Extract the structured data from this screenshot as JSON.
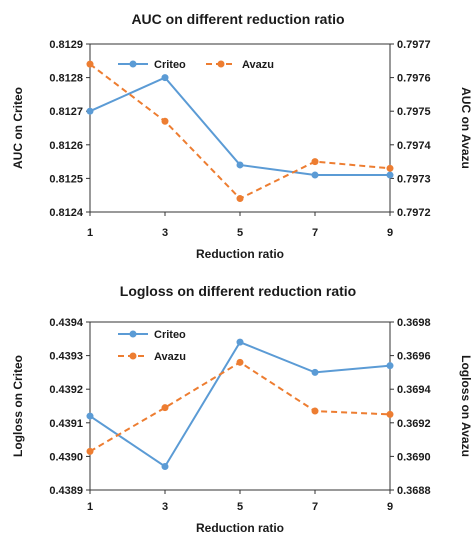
{
  "chart_data": [
    {
      "type": "line",
      "title": "AUC on different reduction ratio",
      "xlabel": "Reduction ratio",
      "ylabel_left": "AUC on Criteo",
      "ylabel_right": "AUC on Avazu",
      "x": [
        1,
        3,
        5,
        7,
        9
      ],
      "x_ticks": [
        "1",
        "3",
        "5",
        "7",
        "9"
      ],
      "ylim_left": [
        0.8124,
        0.8129
      ],
      "ylim_right": [
        0.7972,
        0.7977
      ],
      "yticks_left": [
        "0.8124",
        "0.8125",
        "0.8126",
        "0.8127",
        "0.8128",
        "0.8129"
      ],
      "yticks_right": [
        "0.7972",
        "0.7973",
        "0.7974",
        "0.7975",
        "0.7976",
        "0.7977"
      ],
      "legend_placement": "top-left",
      "grid": false,
      "series": [
        {
          "name": "Criteo",
          "axis": "left",
          "color": "#5b9bd5",
          "style": "solid",
          "values": [
            0.8127,
            0.8128,
            0.81254,
            0.81251,
            0.81251
          ]
        },
        {
          "name": "Avazu",
          "axis": "right",
          "color": "#ed7d31",
          "style": "dashed",
          "values": [
            0.79764,
            0.79747,
            0.79724,
            0.79735,
            0.79733
          ]
        }
      ]
    },
    {
      "type": "line",
      "title": "Logloss on different reduction ratio",
      "xlabel": "Reduction ratio",
      "ylabel_left": "Logloss on Criteo",
      "ylabel_right": "Logloss on Avazu",
      "x": [
        1,
        3,
        5,
        7,
        9
      ],
      "x_ticks": [
        "1",
        "3",
        "5",
        "7",
        "9"
      ],
      "ylim_left": [
        0.4389,
        0.4394
      ],
      "ylim_right": [
        0.3688,
        0.3698
      ],
      "yticks_left": [
        "0.4389",
        "0.4390",
        "0.4391",
        "0.4392",
        "0.4393",
        "0.4394"
      ],
      "yticks_right": [
        "0.3688",
        "0.3690",
        "0.3692",
        "0.3694",
        "0.3696",
        "0.3698"
      ],
      "legend_placement": "top-left",
      "grid": false,
      "series": [
        {
          "name": "Criteo",
          "axis": "left",
          "color": "#5b9bd5",
          "style": "solid",
          "values": [
            0.43912,
            0.43897,
            0.43934,
            0.43925,
            0.43927
          ]
        },
        {
          "name": "Avazu",
          "axis": "right",
          "color": "#ed7d31",
          "style": "dashed",
          "values": [
            0.36903,
            0.36929,
            0.36956,
            0.36927,
            0.36925
          ]
        }
      ]
    }
  ]
}
